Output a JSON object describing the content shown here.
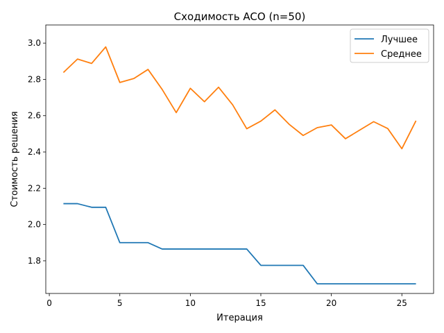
{
  "chart_data": {
    "type": "line",
    "title": "Сходимость ACO (n=50)",
    "xlabel": "Итерация",
    "ylabel": "Стоимость решения",
    "xlim": [
      -0.25,
      27.25
    ],
    "ylim": [
      1.62,
      3.1
    ],
    "xticks": [
      0,
      5,
      10,
      15,
      20,
      25
    ],
    "xtick_labels": [
      "0",
      "5",
      "10",
      "15",
      "20",
      "25"
    ],
    "yticks": [
      1.8,
      2.0,
      2.2,
      2.4,
      2.6,
      2.8,
      3.0
    ],
    "ytick_labels": [
      "1.8",
      "2.0",
      "2.2",
      "2.4",
      "2.6",
      "2.8",
      "3.0"
    ],
    "grid": false,
    "legend_position": "top-right",
    "x": [
      1,
      2,
      3,
      4,
      5,
      6,
      7,
      8,
      9,
      10,
      11,
      12,
      13,
      14,
      15,
      16,
      17,
      18,
      19,
      20,
      21,
      22,
      23,
      24,
      25,
      26
    ],
    "series": [
      {
        "name": "Лучшее",
        "color": "#1f77b4",
        "values": [
          2.115,
          2.115,
          2.095,
          2.095,
          1.9,
          1.9,
          1.9,
          1.865,
          1.865,
          1.865,
          1.865,
          1.865,
          1.865,
          1.865,
          1.775,
          1.775,
          1.775,
          1.775,
          1.673,
          1.673,
          1.673,
          1.673,
          1.673,
          1.673,
          1.673,
          1.673
        ]
      },
      {
        "name": "Среднее",
        "color": "#ff7f0e",
        "values": [
          2.838,
          2.912,
          2.888,
          2.979,
          2.783,
          2.805,
          2.855,
          2.745,
          2.617,
          2.751,
          2.677,
          2.757,
          2.66,
          2.528,
          2.57,
          2.632,
          2.553,
          2.491,
          2.534,
          2.549,
          2.473,
          2.52,
          2.567,
          2.529,
          2.418,
          2.572
        ]
      }
    ]
  }
}
